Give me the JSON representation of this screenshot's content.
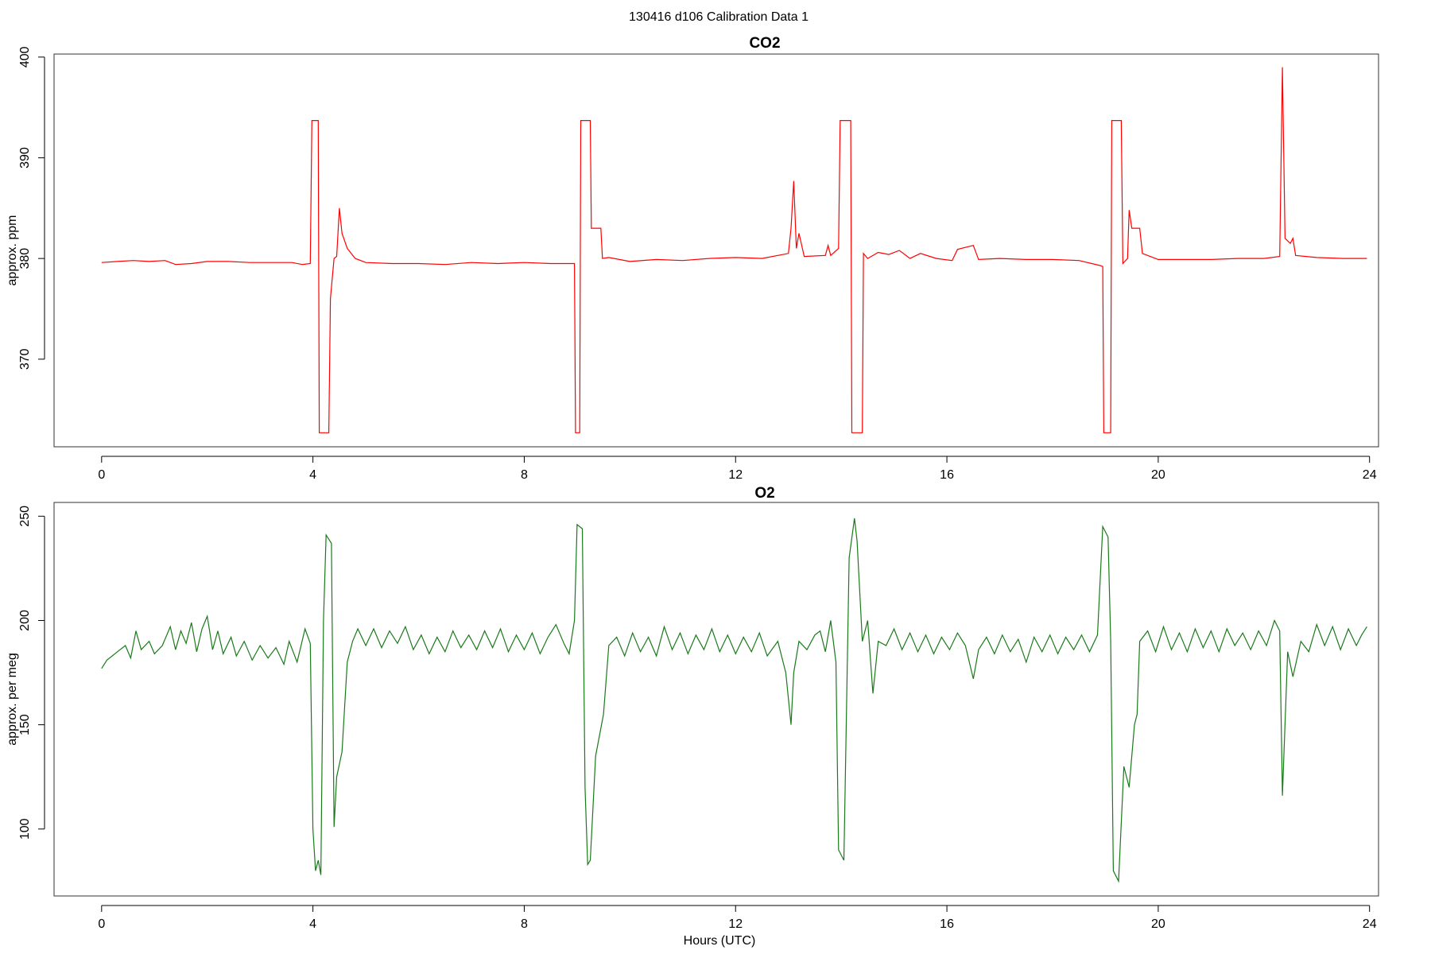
{
  "title": "130416   d106   Calibration Data 1",
  "chart_data": [
    {
      "type": "line",
      "title": "CO2",
      "ylabel": "approx. ppm",
      "color": "#ff0000",
      "xlim": [
        -0.9,
        24.17
      ],
      "xticks": [
        0,
        4,
        8,
        12,
        16,
        20,
        24
      ],
      "ylim": [
        361.3,
        400.3
      ],
      "yticks": [
        370,
        380,
        390,
        400
      ],
      "x": [
        0,
        0.3,
        0.6,
        0.9,
        1.2,
        1.4,
        1.7,
        2.0,
        2.4,
        2.8,
        3.2,
        3.6,
        3.8,
        3.95,
        3.98,
        4.1,
        4.12,
        4.3,
        4.33,
        4.4,
        4.45,
        4.5,
        4.55,
        4.65,
        4.8,
        5.0,
        5.5,
        6,
        6.5,
        7,
        7.5,
        8,
        8.5,
        8.95,
        8.97,
        9.05,
        9.07,
        9.25,
        9.27,
        9.45,
        9.48,
        9.6,
        10,
        10.5,
        11,
        11.5,
        12,
        12.5,
        13.0,
        13.05,
        13.1,
        13.15,
        13.2,
        13.3,
        13.7,
        13.75,
        13.8,
        13.95,
        13.98,
        14.18,
        14.2,
        14.4,
        14.42,
        14.5,
        14.7,
        14.9,
        15.1,
        15.3,
        15.5,
        15.8,
        16.1,
        16.2,
        16.5,
        16.6,
        17,
        17.5,
        18,
        18.5,
        18.9,
        18.95,
        18.97,
        19.1,
        19.12,
        19.3,
        19.33,
        19.42,
        19.45,
        19.5,
        19.65,
        19.7,
        20,
        20.5,
        21,
        21.5,
        22,
        22.3,
        22.35,
        22.4,
        22.5,
        22.55,
        22.6,
        23,
        23.5,
        23.95
      ],
      "values": [
        379.6,
        379.7,
        379.8,
        379.7,
        379.8,
        379.4,
        379.5,
        379.7,
        379.7,
        379.6,
        379.6,
        379.6,
        379.4,
        379.5,
        393.7,
        393.7,
        362.7,
        362.7,
        376,
        380,
        380.2,
        385,
        382.5,
        381,
        380,
        379.6,
        379.5,
        379.5,
        379.4,
        379.6,
        379.5,
        379.6,
        379.5,
        379.5,
        362.7,
        362.7,
        393.7,
        393.7,
        383,
        383,
        380,
        380.1,
        379.7,
        379.9,
        379.8,
        380,
        380.1,
        380,
        380.5,
        383,
        387.7,
        381,
        382.5,
        380.2,
        380.3,
        381.3,
        380.3,
        381,
        393.7,
        393.7,
        362.7,
        362.7,
        380.5,
        380,
        380.6,
        380.4,
        380.8,
        380,
        380.5,
        380,
        379.8,
        380.9,
        381.3,
        379.9,
        380,
        379.9,
        379.9,
        379.8,
        379.3,
        379.2,
        362.7,
        362.7,
        393.7,
        393.7,
        379.5,
        380,
        384.8,
        383,
        383,
        380.5,
        379.9,
        379.9,
        379.9,
        380,
        380,
        380.2,
        399,
        382,
        381.5,
        382,
        380.3,
        380.1,
        380,
        380
      ]
    },
    {
      "type": "line",
      "title": "O2",
      "ylabel": "approx. per meg",
      "xlabel": "Hours (UTC)",
      "color": "#1a7a1a",
      "xlim": [
        -0.9,
        24.17
      ],
      "xticks": [
        0,
        4,
        8,
        12,
        16,
        20,
        24
      ],
      "ylim": [
        67.9,
        256.6
      ],
      "yticks": [
        100,
        150,
        200,
        250
      ],
      "x": [
        0,
        0.1,
        0.2,
        0.3,
        0.45,
        0.55,
        0.65,
        0.75,
        0.9,
        1.0,
        1.15,
        1.3,
        1.4,
        1.5,
        1.6,
        1.7,
        1.8,
        1.9,
        2.0,
        2.1,
        2.2,
        2.3,
        2.45,
        2.55,
        2.7,
        2.85,
        3.0,
        3.15,
        3.3,
        3.45,
        3.55,
        3.7,
        3.85,
        3.95,
        4.0,
        4.05,
        4.1,
        4.15,
        4.2,
        4.25,
        4.35,
        4.4,
        4.45,
        4.55,
        4.65,
        4.75,
        4.85,
        5.0,
        5.15,
        5.3,
        5.45,
        5.6,
        5.75,
        5.9,
        6.05,
        6.2,
        6.35,
        6.5,
        6.65,
        6.8,
        6.95,
        7.1,
        7.25,
        7.4,
        7.55,
        7.7,
        7.85,
        8.0,
        8.15,
        8.3,
        8.45,
        8.6,
        8.75,
        8.85,
        8.95,
        9.0,
        9.1,
        9.15,
        9.2,
        9.25,
        9.35,
        9.5,
        9.6,
        9.75,
        9.9,
        10.05,
        10.2,
        10.35,
        10.5,
        10.65,
        10.8,
        10.95,
        11.1,
        11.25,
        11.4,
        11.55,
        11.7,
        11.85,
        12.0,
        12.15,
        12.3,
        12.45,
        12.6,
        12.8,
        12.95,
        13.05,
        13.1,
        13.2,
        13.35,
        13.5,
        13.6,
        13.7,
        13.8,
        13.9,
        13.95,
        14.05,
        14.15,
        14.25,
        14.3,
        14.4,
        14.5,
        14.6,
        14.7,
        14.85,
        15.0,
        15.15,
        15.3,
        15.45,
        15.6,
        15.75,
        15.9,
        16.05,
        16.2,
        16.35,
        16.5,
        16.6,
        16.75,
        16.9,
        17.05,
        17.2,
        17.35,
        17.5,
        17.65,
        17.8,
        17.95,
        18.1,
        18.25,
        18.4,
        18.55,
        18.7,
        18.85,
        18.95,
        19.05,
        19.1,
        19.15,
        19.25,
        19.35,
        19.45,
        19.55,
        19.6,
        19.65,
        19.8,
        19.95,
        20.1,
        20.25,
        20.4,
        20.55,
        20.7,
        20.85,
        21.0,
        21.15,
        21.3,
        21.45,
        21.6,
        21.75,
        21.9,
        22.05,
        22.2,
        22.3,
        22.35,
        22.45,
        22.55,
        22.7,
        22.85,
        23.0,
        23.15,
        23.3,
        23.45,
        23.6,
        23.75,
        23.85,
        23.95
      ],
      "values": [
        177,
        181,
        183,
        185,
        188,
        182,
        195,
        186,
        190,
        184,
        188,
        197,
        186,
        195,
        189,
        199,
        185,
        196,
        202,
        186,
        195,
        184,
        192,
        183,
        190,
        181,
        188,
        182,
        187,
        179,
        190,
        180,
        196,
        189,
        100,
        80,
        85,
        78,
        200,
        241,
        237,
        101,
        125,
        137,
        180,
        190,
        196,
        188,
        196,
        187,
        195,
        189,
        197,
        186,
        193,
        184,
        192,
        185,
        195,
        187,
        193,
        186,
        195,
        187,
        196,
        185,
        193,
        186,
        194,
        184,
        192,
        198,
        189,
        184,
        200,
        246,
        244,
        120,
        83,
        85,
        135,
        155,
        188,
        192,
        183,
        194,
        185,
        192,
        183,
        197,
        186,
        194,
        184,
        193,
        186,
        196,
        185,
        193,
        184,
        192,
        185,
        194,
        183,
        190,
        175,
        150,
        175,
        190,
        186,
        193,
        195,
        185,
        200,
        180,
        90,
        85,
        230,
        249,
        238,
        190,
        200,
        165,
        190,
        188,
        196,
        186,
        194,
        185,
        193,
        184,
        192,
        186,
        194,
        188,
        172,
        186,
        192,
        184,
        193,
        185,
        191,
        180,
        192,
        185,
        193,
        184,
        192,
        186,
        193,
        185,
        193,
        245,
        240,
        190,
        80,
        75,
        130,
        120,
        150,
        155,
        190,
        195,
        185,
        197,
        186,
        194,
        185,
        196,
        187,
        195,
        185,
        196,
        188,
        194,
        186,
        195,
        188,
        200,
        195,
        116,
        185,
        173,
        190,
        185,
        198,
        188,
        197,
        186,
        196,
        188,
        193,
        197
      ]
    }
  ]
}
